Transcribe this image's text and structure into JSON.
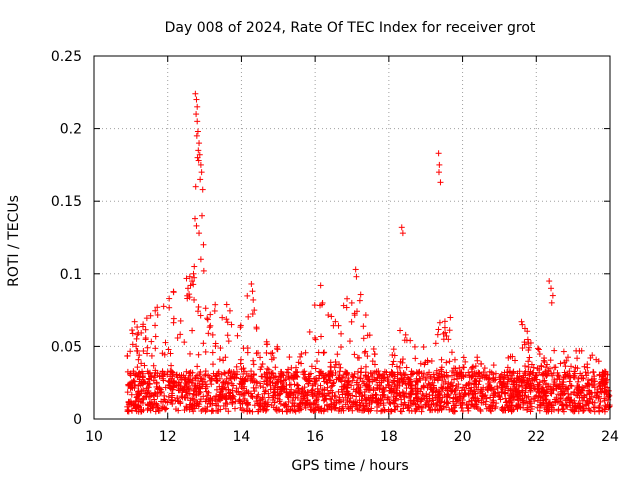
{
  "chart_data": {
    "type": "scatter",
    "title": "Day 008 of 2024, Rate Of TEC Index for receiver grot",
    "xlabel": "GPS time / hours",
    "ylabel": "ROTI / TECUs",
    "xlim": [
      10,
      24
    ],
    "ylim": [
      0,
      0.25
    ],
    "x_ticks": [
      "10",
      "12",
      "14",
      "16",
      "18",
      "20",
      "22",
      "24"
    ],
    "y_ticks": [
      "0",
      "0.05",
      "0.1",
      "0.15",
      "0.2",
      "0.25"
    ],
    "grid": true,
    "marker": "+",
    "series_color": "#ff0000",
    "density_profile": {
      "x": [
        10.9,
        11.2,
        11.5,
        11.8,
        12.1,
        12.4,
        12.7,
        13.0,
        13.3,
        13.6,
        13.9,
        14.2,
        14.5,
        14.8,
        15.1,
        15.4,
        15.7,
        16.0,
        16.3,
        16.6,
        16.9,
        17.2,
        17.5,
        17.8,
        18.1,
        18.4,
        18.7,
        19.0,
        19.3,
        19.6,
        19.9,
        20.2,
        20.5,
        20.8,
        21.1,
        21.4,
        21.7,
        22.0,
        22.3,
        22.6,
        22.9,
        23.2,
        23.5,
        23.8,
        24.0
      ],
      "y_upper": [
        0.07,
        0.07,
        0.075,
        0.08,
        0.085,
        0.1,
        0.1,
        0.09,
        0.08,
        0.085,
        0.06,
        0.09,
        0.07,
        0.05,
        0.05,
        0.04,
        0.05,
        0.08,
        0.08,
        0.08,
        0.085,
        0.1,
        0.06,
        0.04,
        0.05,
        0.07,
        0.055,
        0.05,
        0.065,
        0.08,
        0.045,
        0.04,
        0.045,
        0.04,
        0.04,
        0.045,
        0.065,
        0.05,
        0.045,
        0.05,
        0.045,
        0.05,
        0.045,
        0.045,
        0.04
      ]
    },
    "outliers": {
      "x": [
        12.75,
        12.78,
        12.8,
        12.77,
        12.8,
        12.82,
        12.79,
        12.85,
        12.83,
        12.87,
        12.81,
        12.84,
        12.9,
        12.92,
        12.76,
        12.88,
        12.95,
        12.93,
        12.74,
        12.78,
        12.85,
        12.97,
        12.9,
        12.98,
        12.72,
        12.7,
        12.66,
        12.6,
        12.55,
        12.58,
        12.62,
        12.53,
        18.35,
        18.38,
        19.35,
        19.37,
        19.36,
        19.4,
        22.35,
        22.4,
        22.45,
        22.42,
        14.27,
        14.3,
        14.32,
        16.15,
        17.1,
        17.12,
        21.6,
        21.62
      ],
      "y": [
        0.224,
        0.22,
        0.215,
        0.21,
        0.205,
        0.198,
        0.195,
        0.19,
        0.185,
        0.182,
        0.18,
        0.178,
        0.175,
        0.17,
        0.16,
        0.165,
        0.158,
        0.14,
        0.138,
        0.133,
        0.128,
        0.12,
        0.11,
        0.102,
        0.105,
        0.1,
        0.095,
        0.098,
        0.09,
        0.086,
        0.092,
        0.083,
        0.132,
        0.128,
        0.183,
        0.175,
        0.17,
        0.163,
        0.095,
        0.09,
        0.085,
        0.08,
        0.093,
        0.088,
        0.082,
        0.092,
        0.103,
        0.098,
        0.067,
        0.065
      ]
    }
  }
}
